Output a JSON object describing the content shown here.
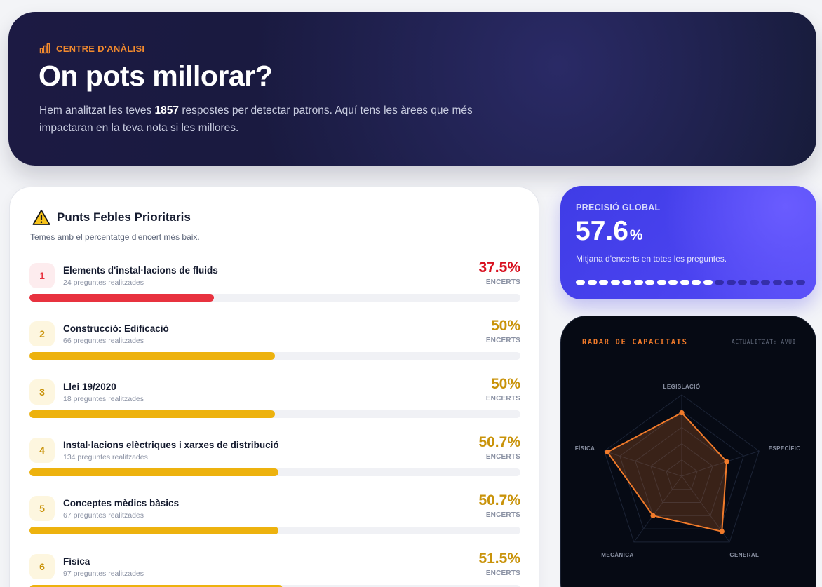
{
  "header": {
    "eyebrow": "CENTRE D'ANÀLISI",
    "title": "On pots millorar?",
    "desc_before": "Hem analitzat les teves ",
    "response_count": "1857",
    "desc_after": " respostes per detectar patrons. Aquí tens les àrees que més impactaran en la teva nota si les millores."
  },
  "weak_points": {
    "title": "Punts Febles Prioritaris",
    "subtitle": "Temes amb el percentatge d'encert més baix.",
    "items": [
      {
        "rank": "1",
        "name": "Elements d'instal·lacions de fluids",
        "count": "24 preguntes realitzades",
        "percent": "37.5%",
        "value": 37.5,
        "label": "ENCERTS",
        "level": "danger"
      },
      {
        "rank": "2",
        "name": "Construcció: Edificació",
        "count": "66 preguntes realitzades",
        "percent": "50%",
        "value": 50,
        "label": "ENCERTS",
        "level": "warning"
      },
      {
        "rank": "3",
        "name": "Llei 19/2020",
        "count": "18 preguntes realitzades",
        "percent": "50%",
        "value": 50,
        "label": "ENCERTS",
        "level": "warning"
      },
      {
        "rank": "4",
        "name": "Instal·lacions elèctriques i xarxes de distribució",
        "count": "134 preguntes realitzades",
        "percent": "50.7%",
        "value": 50.7,
        "label": "ENCERTS",
        "level": "warning"
      },
      {
        "rank": "5",
        "name": "Conceptes mèdics bàsics",
        "count": "67 preguntes realitzades",
        "percent": "50.7%",
        "value": 50.7,
        "label": "ENCERTS",
        "level": "warning"
      },
      {
        "rank": "6",
        "name": "Física",
        "count": "97 preguntes realitzades",
        "percent": "51.5%",
        "value": 51.5,
        "label": "ENCERTS",
        "level": "warning"
      }
    ]
  },
  "precision": {
    "label": "PRECISIÓ GLOBAL",
    "value": "57.6",
    "unit": "%",
    "description": "Mitjana d'encerts en totes les preguntes.",
    "segments_total": 20,
    "segments_filled": 12
  },
  "radar": {
    "title": "RADAR DE CAPACITATS",
    "updated": "ACTUALITZAT: AVUI",
    "axes": [
      "LEGISLACIÓ",
      "ESPECÍFIC",
      "GENERAL",
      "MECÀNICA",
      "FÍSICA"
    ],
    "values": [
      78,
      58,
      84,
      60,
      96
    ]
  },
  "colors": {
    "danger": "#e8323f",
    "danger_text": "#d8101f",
    "danger_bg": "#fdecee",
    "warning": "#edb20e",
    "warning_text": "#c9930a",
    "warning_bg": "#fdf6df",
    "accent": "#f28a2e",
    "radar_stroke": "#f07a2a"
  }
}
